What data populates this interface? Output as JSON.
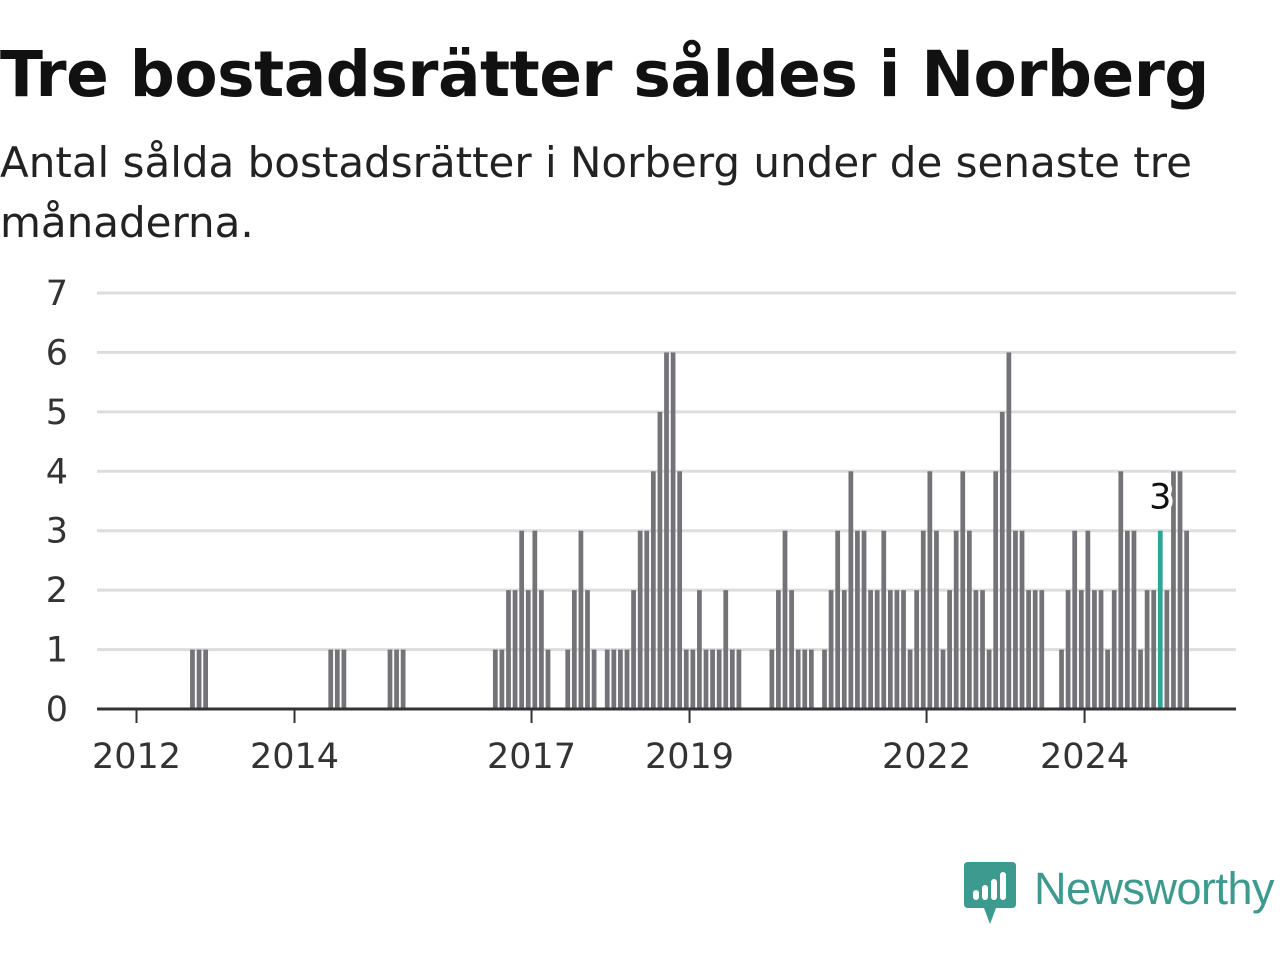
{
  "title": "Tre bostadsrätter såldes i Norberg",
  "subtitle": "Antal sålda bostadsrätter i Norberg under de senaste tre månaderna.",
  "brand": {
    "name": "Newsworthy",
    "icon": "newsworthy-logo-icon",
    "color": "#3c9a8e"
  },
  "chart_data": {
    "type": "bar",
    "title": "Tre bostadsrätter såldes i Norberg",
    "subtitle": "Antal sålda bostadsrätter i Norberg under de senaste tre månaderna.",
    "xlabel": "",
    "ylabel": "",
    "ylim": [
      0,
      7
    ],
    "yticks": [
      "0",
      "1",
      "2",
      "3",
      "4",
      "5",
      "6",
      "7"
    ],
    "xtick_labels": [
      {
        "label": "2012",
        "date": "2012-01"
      },
      {
        "label": "2014",
        "date": "2014-01"
      },
      {
        "label": "2017",
        "date": "2017-01"
      },
      {
        "label": "2019",
        "date": "2019-01"
      },
      {
        "label": "2022",
        "date": "2022-01"
      },
      {
        "label": "2024",
        "date": "2024-01"
      }
    ],
    "x_range": [
      "2011-07",
      "2025-12"
    ],
    "grid": true,
    "legend": "none",
    "colors": {
      "bar": "#747378",
      "highlight": "#2aa796",
      "grid": "#dddddd",
      "axis": "#333333"
    },
    "highlight": {
      "date": "2024-12",
      "value": 3,
      "label": "3"
    },
    "series": [
      {
        "values": [
          {
            "date": "2012-09",
            "value": 1
          },
          {
            "date": "2012-10",
            "value": 1
          },
          {
            "date": "2012-11",
            "value": 1
          },
          {
            "date": "2014-06",
            "value": 1
          },
          {
            "date": "2014-07",
            "value": 1
          },
          {
            "date": "2014-08",
            "value": 1
          },
          {
            "date": "2015-03",
            "value": 1
          },
          {
            "date": "2015-04",
            "value": 1
          },
          {
            "date": "2015-05",
            "value": 1
          },
          {
            "date": "2016-07",
            "value": 1
          },
          {
            "date": "2016-08",
            "value": 1
          },
          {
            "date": "2016-09",
            "value": 2
          },
          {
            "date": "2016-10",
            "value": 2
          },
          {
            "date": "2016-11",
            "value": 3
          },
          {
            "date": "2016-12",
            "value": 2
          },
          {
            "date": "2017-01",
            "value": 3
          },
          {
            "date": "2017-02",
            "value": 2
          },
          {
            "date": "2017-03",
            "value": 1
          },
          {
            "date": "2017-06",
            "value": 1
          },
          {
            "date": "2017-07",
            "value": 2
          },
          {
            "date": "2017-08",
            "value": 3
          },
          {
            "date": "2017-09",
            "value": 2
          },
          {
            "date": "2017-10",
            "value": 1
          },
          {
            "date": "2017-12",
            "value": 1
          },
          {
            "date": "2018-01",
            "value": 1
          },
          {
            "date": "2018-02",
            "value": 1
          },
          {
            "date": "2018-03",
            "value": 1
          },
          {
            "date": "2018-04",
            "value": 2
          },
          {
            "date": "2018-05",
            "value": 3
          },
          {
            "date": "2018-06",
            "value": 3
          },
          {
            "date": "2018-07",
            "value": 4
          },
          {
            "date": "2018-08",
            "value": 5
          },
          {
            "date": "2018-09",
            "value": 6
          },
          {
            "date": "2018-10",
            "value": 6
          },
          {
            "date": "2018-11",
            "value": 4
          },
          {
            "date": "2018-12",
            "value": 1
          },
          {
            "date": "2019-01",
            "value": 1
          },
          {
            "date": "2019-02",
            "value": 2
          },
          {
            "date": "2019-03",
            "value": 1
          },
          {
            "date": "2019-04",
            "value": 1
          },
          {
            "date": "2019-05",
            "value": 1
          },
          {
            "date": "2019-06",
            "value": 2
          },
          {
            "date": "2019-07",
            "value": 1
          },
          {
            "date": "2019-08",
            "value": 1
          },
          {
            "date": "2020-01",
            "value": 1
          },
          {
            "date": "2020-02",
            "value": 2
          },
          {
            "date": "2020-03",
            "value": 3
          },
          {
            "date": "2020-04",
            "value": 2
          },
          {
            "date": "2020-05",
            "value": 1
          },
          {
            "date": "2020-06",
            "value": 1
          },
          {
            "date": "2020-07",
            "value": 1
          },
          {
            "date": "2020-09",
            "value": 1
          },
          {
            "date": "2020-10",
            "value": 2
          },
          {
            "date": "2020-11",
            "value": 3
          },
          {
            "date": "2020-12",
            "value": 2
          },
          {
            "date": "2021-01",
            "value": 4
          },
          {
            "date": "2021-02",
            "value": 3
          },
          {
            "date": "2021-03",
            "value": 3
          },
          {
            "date": "2021-04",
            "value": 2
          },
          {
            "date": "2021-05",
            "value": 2
          },
          {
            "date": "2021-06",
            "value": 3
          },
          {
            "date": "2021-07",
            "value": 2
          },
          {
            "date": "2021-08",
            "value": 2
          },
          {
            "date": "2021-09",
            "value": 2
          },
          {
            "date": "2021-10",
            "value": 1
          },
          {
            "date": "2021-11",
            "value": 2
          },
          {
            "date": "2021-12",
            "value": 3
          },
          {
            "date": "2022-01",
            "value": 4
          },
          {
            "date": "2022-02",
            "value": 3
          },
          {
            "date": "2022-03",
            "value": 1
          },
          {
            "date": "2022-04",
            "value": 2
          },
          {
            "date": "2022-05",
            "value": 3
          },
          {
            "date": "2022-06",
            "value": 4
          },
          {
            "date": "2022-07",
            "value": 3
          },
          {
            "date": "2022-08",
            "value": 2
          },
          {
            "date": "2022-09",
            "value": 2
          },
          {
            "date": "2022-10",
            "value": 1
          },
          {
            "date": "2022-11",
            "value": 4
          },
          {
            "date": "2022-12",
            "value": 5
          },
          {
            "date": "2023-01",
            "value": 6
          },
          {
            "date": "2023-02",
            "value": 3
          },
          {
            "date": "2023-03",
            "value": 3
          },
          {
            "date": "2023-04",
            "value": 2
          },
          {
            "date": "2023-05",
            "value": 2
          },
          {
            "date": "2023-06",
            "value": 2
          },
          {
            "date": "2023-09",
            "value": 1
          },
          {
            "date": "2023-10",
            "value": 2
          },
          {
            "date": "2023-11",
            "value": 3
          },
          {
            "date": "2023-12",
            "value": 2
          },
          {
            "date": "2024-01",
            "value": 3
          },
          {
            "date": "2024-02",
            "value": 2
          },
          {
            "date": "2024-03",
            "value": 2
          },
          {
            "date": "2024-04",
            "value": 1
          },
          {
            "date": "2024-05",
            "value": 2
          },
          {
            "date": "2024-06",
            "value": 4
          },
          {
            "date": "2024-07",
            "value": 3
          },
          {
            "date": "2024-08",
            "value": 3
          },
          {
            "date": "2024-09",
            "value": 1
          },
          {
            "date": "2024-10",
            "value": 2
          },
          {
            "date": "2024-11",
            "value": 2
          },
          {
            "date": "2025-01",
            "value": 2
          },
          {
            "date": "2025-02",
            "value": 4
          },
          {
            "date": "2025-03",
            "value": 4
          },
          {
            "date": "2025-04",
            "value": 3
          }
        ]
      }
    ]
  }
}
